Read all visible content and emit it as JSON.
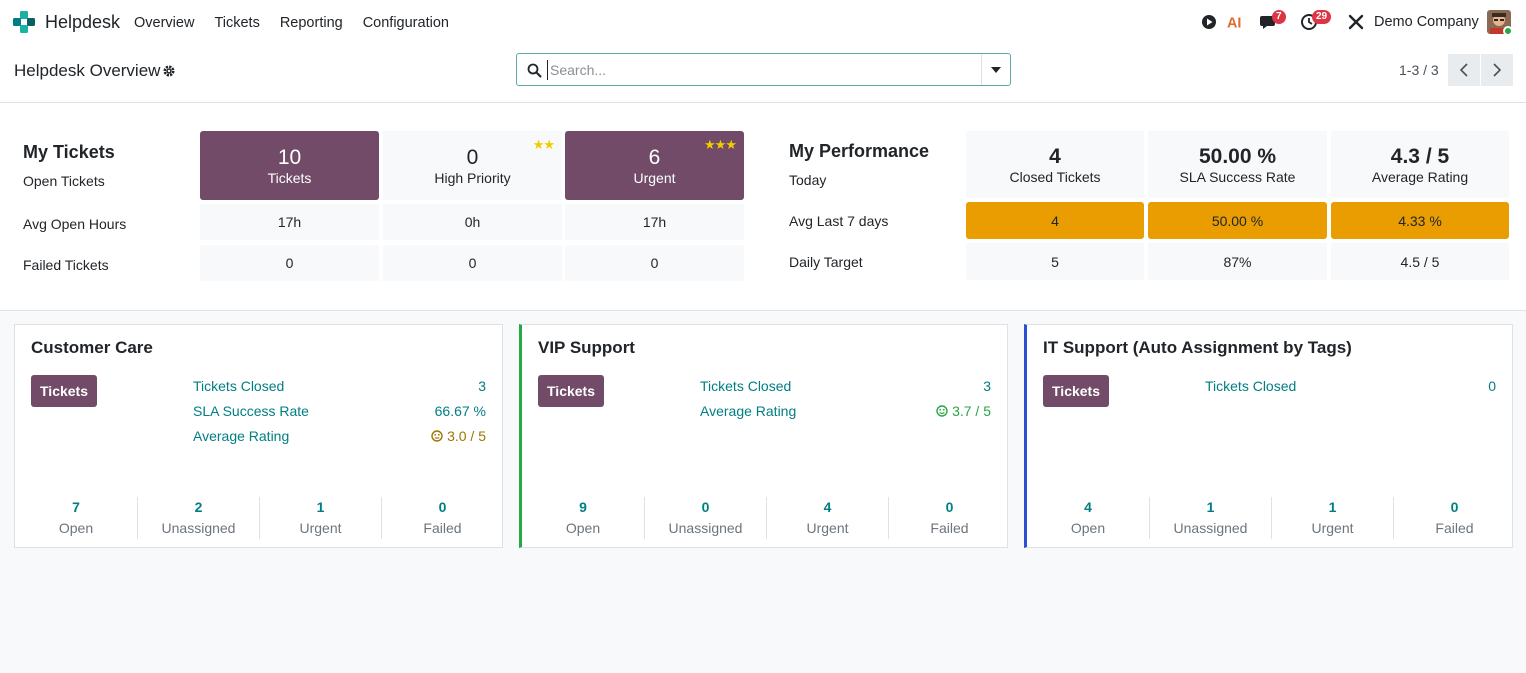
{
  "navbar": {
    "app_name": "Helpdesk",
    "menu": [
      "Overview",
      "Tickets",
      "Reporting",
      "Configuration"
    ],
    "messages_badge": "7",
    "activities_badge": "29",
    "company": "Demo Company",
    "ai_label": "AI"
  },
  "control": {
    "title": "Helpdesk Overview",
    "search_placeholder": "Search...",
    "pager": "1-3 / 3"
  },
  "my_tickets": {
    "title": "My Tickets",
    "row_labels": [
      "Open Tickets",
      "Avg Open Hours",
      "Failed Tickets"
    ],
    "columns": [
      {
        "value": "10",
        "label": "Tickets",
        "hours": "17h",
        "failed": "0"
      },
      {
        "value": "0",
        "label": "High Priority",
        "stars": "★★",
        "hours": "0h",
        "failed": "0"
      },
      {
        "value": "6",
        "label": "Urgent",
        "stars": "★★★",
        "hours": "17h",
        "failed": "0"
      }
    ]
  },
  "my_performance": {
    "title": "My Performance",
    "row_labels": [
      "Today",
      "Avg Last 7 days",
      "Daily Target"
    ],
    "columns": [
      {
        "value": "4",
        "label": "Closed Tickets",
        "avg7": "4",
        "target": "5"
      },
      {
        "value": "50.00 %",
        "label": "SLA Success Rate",
        "avg7": "50.00 %",
        "target": "87%"
      },
      {
        "value": "4.3 / 5",
        "label": "Average Rating",
        "avg7": "4.33 %",
        "target": "4.5 / 5"
      }
    ]
  },
  "teams": [
    {
      "name": "Customer Care",
      "button": "Tickets",
      "metrics": [
        {
          "label": "Tickets Closed",
          "value": "3"
        },
        {
          "label": "SLA Success Rate",
          "value": "66.67 %"
        },
        {
          "label": "Average Rating",
          "value": "3.0 / 5"
        }
      ],
      "footer": [
        {
          "num": "7",
          "label": "Open"
        },
        {
          "num": "2",
          "label": "Unassigned"
        },
        {
          "num": "1",
          "label": "Urgent"
        },
        {
          "num": "0",
          "label": "Failed"
        }
      ]
    },
    {
      "name": "VIP Support",
      "button": "Tickets",
      "metrics": [
        {
          "label": "Tickets Closed",
          "value": "3"
        },
        {
          "label": "Average Rating",
          "value": "3.7 / 5"
        }
      ],
      "footer": [
        {
          "num": "9",
          "label": "Open"
        },
        {
          "num": "0",
          "label": "Unassigned"
        },
        {
          "num": "4",
          "label": "Urgent"
        },
        {
          "num": "0",
          "label": "Failed"
        }
      ]
    },
    {
      "name": "IT Support (Auto Assignment by Tags)",
      "button": "Tickets",
      "metrics": [
        {
          "label": "Tickets Closed",
          "value": "0"
        }
      ],
      "footer": [
        {
          "num": "4",
          "label": "Open"
        },
        {
          "num": "1",
          "label": "Unassigned"
        },
        {
          "num": "1",
          "label": "Urgent"
        },
        {
          "num": "0",
          "label": "Failed"
        }
      ]
    }
  ],
  "colors": {
    "brand": "#714b67",
    "teal": "#017e84",
    "orange": "#e99d00",
    "vip_border": "#28a745",
    "it_border": "#2b50d4"
  }
}
